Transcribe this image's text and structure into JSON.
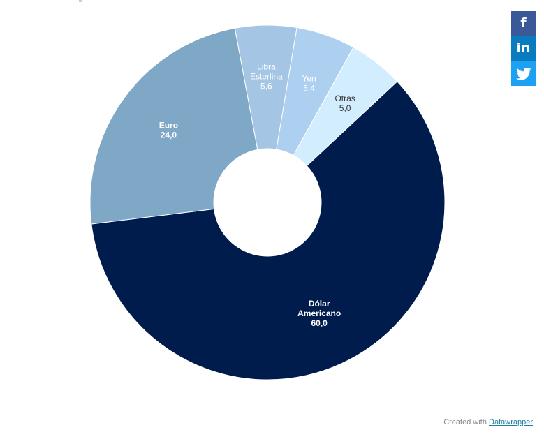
{
  "chart_data": {
    "type": "pie",
    "donut": true,
    "categories": [
      "Dólar Americano",
      "Euro",
      "Libra Esterlina",
      "Yen",
      "Otras"
    ],
    "values": [
      60.0,
      24.0,
      5.6,
      5.4,
      5.0
    ],
    "value_labels": [
      "60,0",
      "24,0",
      "5,6",
      "5,4",
      "5,0"
    ],
    "label_lines": [
      [
        "Dólar",
        "Americano"
      ],
      [
        "Euro"
      ],
      [
        "Libra",
        "Esterlina"
      ],
      [
        "Yen"
      ],
      [
        "Otras"
      ]
    ],
    "colors": [
      "#001c4c",
      "#7fa7c6",
      "#a4c6e4",
      "#aed0f0",
      "#d2eefe"
    ],
    "label_colors": [
      "#ffffff",
      "#ffffff",
      "#ffffff",
      "#ffffff",
      "#333333"
    ]
  },
  "share": {
    "facebook": {
      "icon": "facebook-icon",
      "glyph": "f",
      "color": "#3b5998"
    },
    "linkedin": {
      "icon": "linkedin-icon",
      "glyph": "in",
      "color": "#0a7bbf"
    },
    "twitter": {
      "icon": "twitter-icon",
      "color": "#1da1f2"
    }
  },
  "credit": {
    "prefix": "Created with",
    "link_text": "Datawrapper"
  }
}
